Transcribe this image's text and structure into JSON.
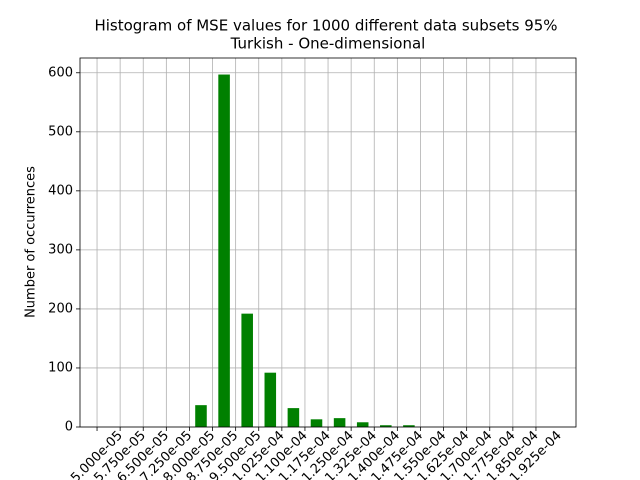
{
  "chart_data": {
    "type": "histogram",
    "title": "Histogram of MSE values for 1000 different data subsets 95%",
    "subtitle": "Turkish - One-dimensional",
    "ylabel": "Number of occurrences",
    "bins": [
      5e-05,
      5.75e-05,
      6.5e-05,
      7.25e-05,
      8e-05,
      8.75e-05,
      9.5e-05,
      0.0001025,
      0.00011,
      0.0001175,
      0.000125,
      0.0001325,
      0.00014,
      0.0001475,
      0.000155,
      0.0001625,
      0.00017,
      0.0001775,
      0.000185,
      0.0001925
    ],
    "values": [
      0,
      0,
      0,
      0,
      37,
      597,
      192,
      92,
      32,
      13,
      15,
      8,
      3,
      3,
      0,
      0,
      0,
      0,
      0
    ],
    "color": "#008000",
    "xlim": [
      4.447e-05,
      0.0002055
    ],
    "xticks": [
      {
        "value": 5e-05,
        "label": "5.000e-05"
      },
      {
        "value": 5.75e-05,
        "label": "5.750e-05"
      },
      {
        "value": 6.5e-05,
        "label": "6.500e-05"
      },
      {
        "value": 7.25e-05,
        "label": "7.250e-05"
      },
      {
        "value": 8e-05,
        "label": "8.000e-05"
      },
      {
        "value": 8.75e-05,
        "label": "8.750e-05"
      },
      {
        "value": 9.5e-05,
        "label": "9.500e-05"
      },
      {
        "value": 0.0001025,
        "label": "1.025e-04"
      },
      {
        "value": 0.00011,
        "label": "1.100e-04"
      },
      {
        "value": 0.0001175,
        "label": "1.175e-04"
      },
      {
        "value": 0.000125,
        "label": "1.250e-04"
      },
      {
        "value": 0.0001325,
        "label": "1.325e-04"
      },
      {
        "value": 0.00014,
        "label": "1.400e-04"
      },
      {
        "value": 0.0001475,
        "label": "1.475e-04"
      },
      {
        "value": 0.000155,
        "label": "1.550e-04"
      },
      {
        "value": 0.0001625,
        "label": "1.625e-04"
      },
      {
        "value": 0.00017,
        "label": "1.700e-04"
      },
      {
        "value": 0.0001775,
        "label": "1.775e-04"
      },
      {
        "value": 0.000185,
        "label": "1.850e-04"
      },
      {
        "value": 0.0001925,
        "label": "1.925e-04"
      }
    ],
    "ylim": [
      0,
      625
    ],
    "yticks": [
      0,
      100,
      200,
      300,
      400,
      500,
      600
    ],
    "grid": true
  }
}
